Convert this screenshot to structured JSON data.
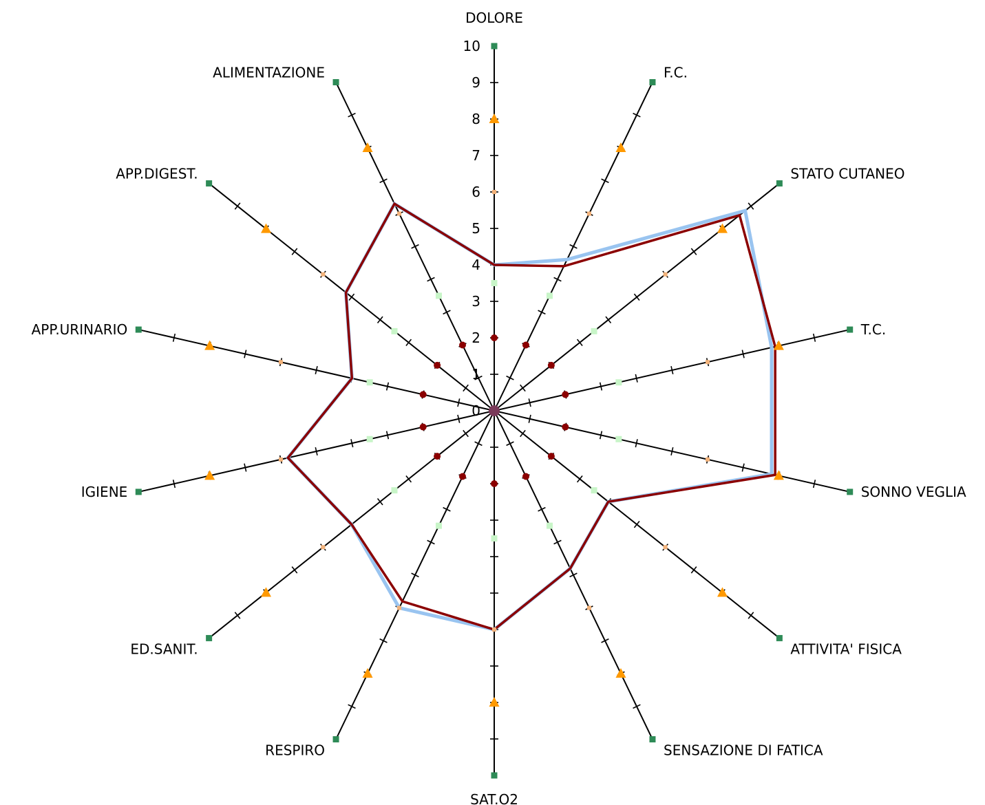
{
  "chart_data": {
    "type": "radar",
    "title": "",
    "axes": [
      "DOLORE",
      "F.C.",
      "STATO CUTANEO",
      "T.C.",
      "SONNO VEGLIA",
      "ATTIVITA' FISICA",
      "SENSAZIONE DI FATICA",
      "SAT.O2",
      "RESPIRO",
      "ED.SANIT.",
      "IGIENE",
      "APP.URINARIO",
      "APP.DIGEST.",
      "ALIMENTAZIONE"
    ],
    "axis_range": [
      0,
      10
    ],
    "ticks": [
      "0",
      "1",
      "2",
      "3",
      "4",
      "5",
      "6",
      "7",
      "8",
      "9",
      "10"
    ],
    "series": [
      {
        "values": [
          4,
          4.6,
          8.8,
          7.8,
          7.8,
          4.0,
          4.8,
          6.0,
          6.0,
          5.0,
          5.8,
          4.0,
          5.2,
          6.3
        ],
        "color": "#99c4f0"
      },
      {
        "values": [
          4,
          4.4,
          8.6,
          7.9,
          7.9,
          4.0,
          4.8,
          6.0,
          5.8,
          5.0,
          5.8,
          4.0,
          5.2,
          6.3
        ],
        "color": "#8b0000"
      }
    ],
    "reference_markers": [
      {
        "level": 2,
        "shape": "circle",
        "color": "#8b0000"
      },
      {
        "level": 3.5,
        "shape": "square",
        "color": "#c8f5c8"
      },
      {
        "level": 6,
        "shape": "tick",
        "color": "#f2b27a"
      },
      {
        "level": 8,
        "shape": "triangle",
        "color": "#ff9900"
      },
      {
        "level": 10,
        "shape": "square",
        "color": "#2e8b57"
      }
    ],
    "grid": false,
    "legend": "none"
  }
}
